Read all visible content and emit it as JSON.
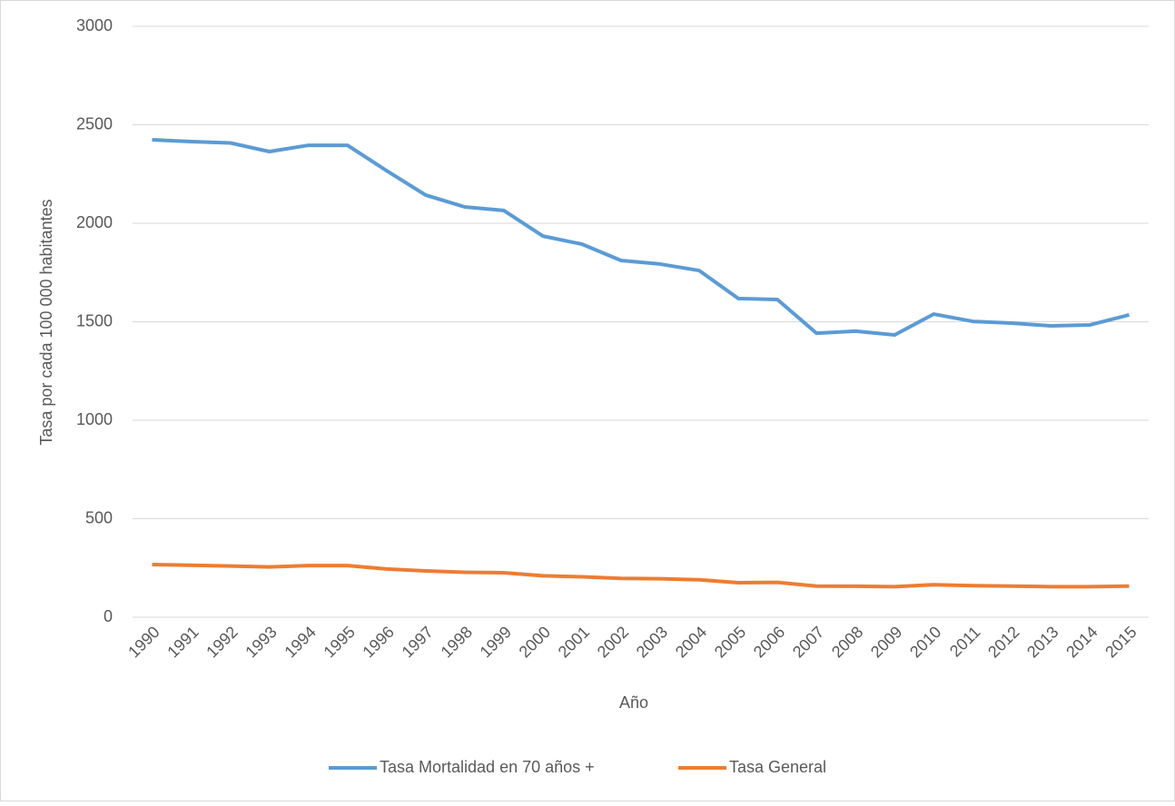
{
  "chart_data": {
    "type": "line",
    "x_label": "Año",
    "y_label": "Tasa por cada 100 000 habitantes",
    "categories": [
      "1990",
      "1991",
      "1992",
      "1993",
      "1994",
      "1995",
      "1996",
      "1997",
      "1998",
      "1999",
      "2000",
      "2001",
      "2002",
      "2003",
      "2004",
      "2005",
      "2006",
      "2007",
      "2008",
      "2009",
      "2010",
      "2011",
      "2012",
      "2013",
      "2014",
      "2015"
    ],
    "series": [
      {
        "name": "Tasa Mortalidad en 70 años +",
        "color": "#5b9bd5",
        "values": [
          2424,
          2415,
          2408,
          2364,
          2396,
          2396,
          2267,
          2143,
          2083,
          2065,
          1935,
          1894,
          1811,
          1793,
          1760,
          1618,
          1613,
          1442,
          1452,
          1433,
          1539,
          1502,
          1493,
          1479,
          1484,
          1535
        ]
      },
      {
        "name": "Tasa General",
        "color": "#ed7d31",
        "values": [
          267,
          264,
          260,
          255,
          262,
          262,
          245,
          235,
          228,
          226,
          210,
          205,
          197,
          195,
          190,
          175,
          177,
          158,
          157,
          155,
          165,
          160,
          158,
          155,
          155,
          158
        ]
      }
    ],
    "ylim": [
      0,
      3000
    ],
    "yticks": [
      0,
      500,
      1000,
      1500,
      2000,
      2500,
      3000
    ],
    "grid": true,
    "legend": "bottom"
  }
}
